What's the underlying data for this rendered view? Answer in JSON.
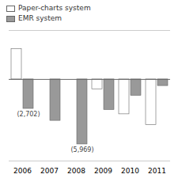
{
  "chart_data": {
    "type": "bar",
    "categories": [
      "2006",
      "2007",
      "2008",
      "2009",
      "2010",
      "2011"
    ],
    "series": [
      {
        "name": "Paper-charts system",
        "color": "#ffffff",
        "values": [
          2800,
          0,
          0,
          -900,
          -3200,
          -4200
        ]
      },
      {
        "name": "EMR system",
        "color": "#999999",
        "values": [
          -2702,
          -3800,
          -5969,
          -2800,
          -1500,
          -600
        ]
      }
    ],
    "ylim": [
      -7500,
      4500
    ],
    "tick_labels": "x",
    "grid": false,
    "legend": "upper left",
    "annotations": [
      {
        "text": "(2,702)",
        "category": "2006",
        "series": "EMR system"
      },
      {
        "text": "(5,969)",
        "category": "2008",
        "series": "EMR system"
      }
    ]
  }
}
